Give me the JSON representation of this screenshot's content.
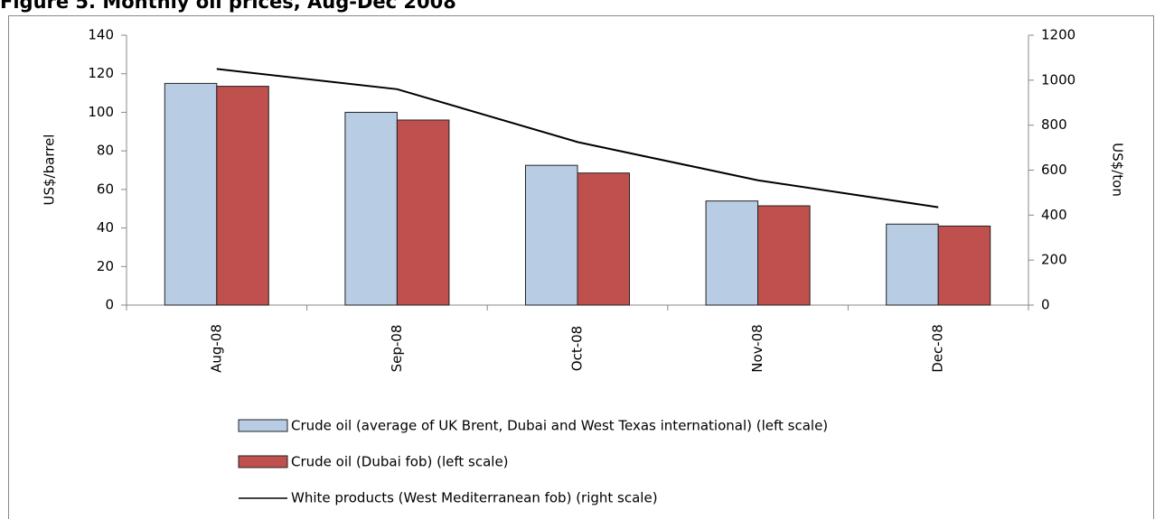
{
  "chart_data": {
    "type": "bar",
    "title": "Figure 5. Monthly oil prices, Aug-Dec 2008",
    "categories": [
      "Aug-08",
      "Sep-08",
      "Oct-08",
      "Nov-08",
      "Dec-08"
    ],
    "ylabel": "US$/barrel",
    "y2label": "US$/ton",
    "ylim": [
      0,
      140
    ],
    "yticks": [
      0,
      20,
      40,
      60,
      80,
      100,
      120,
      140
    ],
    "y2lim": [
      0,
      1200
    ],
    "y2ticks": [
      0,
      200,
      400,
      600,
      800,
      1000,
      1200
    ],
    "grid": false,
    "legend": "bottom",
    "series": [
      {
        "name": "Crude oil (average of UK Brent, Dubai and West Texas international) (left scale)",
        "type": "bar",
        "color": "#b8cce4",
        "values": [
          115,
          100,
          72.5,
          54,
          42
        ]
      },
      {
        "name": "Crude oil (Dubai fob) (left scale)",
        "type": "bar",
        "color": "#c0504d",
        "values": [
          113.5,
          96,
          68.5,
          51.5,
          41
        ]
      },
      {
        "name": "White products (West Mediterranean fob) (right scale)",
        "type": "line",
        "color": "#000000",
        "axis": "y2",
        "values": [
          1050,
          960,
          725,
          555,
          435
        ]
      }
    ]
  }
}
